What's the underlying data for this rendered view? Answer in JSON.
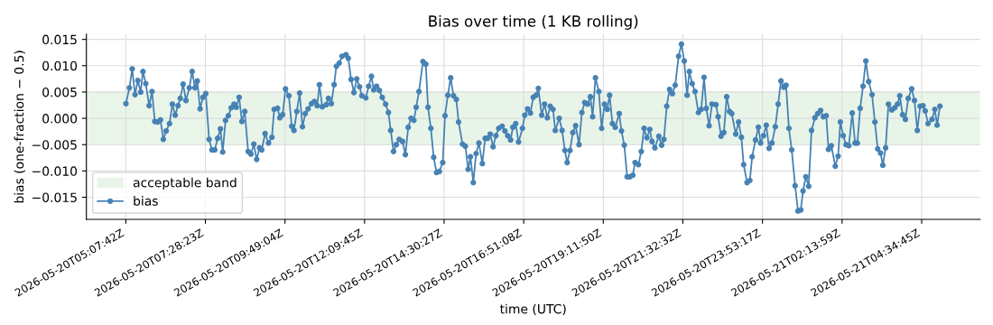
{
  "chart_data": {
    "type": "line",
    "title": "Bias over time (1 KB rolling)",
    "xlabel": "time (UTC)",
    "ylabel": "bias (one-fraction − 0.5)",
    "xlim": [
      "2026-05-20T03:58",
      "2026-05-21T06:18"
    ],
    "ylim": [
      -0.0192,
      0.016
    ],
    "xticks": [
      {
        "value": "2026-05-20T05:07:42",
        "label": "2026-05-20T05:07:42Z"
      },
      {
        "value": "2026-05-20T07:28:23",
        "label": "2026-05-20T07:28:23Z"
      },
      {
        "value": "2026-05-20T09:49:04",
        "label": "2026-05-20T09:49:04Z"
      },
      {
        "value": "2026-05-20T12:09:45",
        "label": "2026-05-20T12:09:45Z"
      },
      {
        "value": "2026-05-20T14:30:27",
        "label": "2026-05-20T14:30:27Z"
      },
      {
        "value": "2026-05-20T16:51:08",
        "label": "2026-05-20T16:51:08Z"
      },
      {
        "value": "2026-05-20T19:11:50",
        "label": "2026-05-20T19:11:50Z"
      },
      {
        "value": "2026-05-20T21:32:32",
        "label": "2026-05-20T21:32:32Z"
      },
      {
        "value": "2026-05-20T23:53:17",
        "label": "2026-05-20T23:53:17Z"
      },
      {
        "value": "2026-05-21T02:13:59",
        "label": "2026-05-21T02:13:59Z"
      },
      {
        "value": "2026-05-21T04:34:45",
        "label": "2026-05-21T04:34:45Z"
      }
    ],
    "yticks": [
      {
        "value": -0.015,
        "label": "−0.015"
      },
      {
        "value": -0.01,
        "label": "−0.010"
      },
      {
        "value": -0.005,
        "label": "−0.005"
      },
      {
        "value": 0,
        "label": "0.000"
      },
      {
        "value": 0.005,
        "label": "0.005"
      },
      {
        "value": 0.01,
        "label": "0.010"
      },
      {
        "value": 0.015,
        "label": "0.015"
      }
    ],
    "grid": true,
    "legend": "bottom left",
    "marker": "circle",
    "line_style": "solid",
    "bands": [
      {
        "axis": "y",
        "from": -0.005,
        "to": 0.005,
        "label": "acceptable band",
        "color": "#2ca02c"
      }
    ],
    "series": [
      {
        "name": "bias",
        "color": "#4682b4",
        "x": [
          "2026-05-20T05:08",
          "2026-05-20T05:14",
          "2026-05-20T05:19",
          "2026-05-20T05:24",
          "2026-05-20T05:29",
          "2026-05-20T05:34",
          "2026-05-20T05:38",
          "2026-05-20T05:43",
          "2026-05-20T05:49",
          "2026-05-20T05:54",
          "2026-05-20T05:59",
          "2026-05-20T06:04",
          "2026-05-20T06:09",
          "2026-05-20T06:14",
          "2026-05-20T06:19",
          "2026-05-20T06:25",
          "2026-05-20T06:30",
          "2026-05-20T06:35",
          "2026-05-20T06:40",
          "2026-05-20T06:44",
          "2026-05-20T06:49",
          "2026-05-20T06:54",
          "2026-05-20T07:00",
          "2026-05-20T07:05",
          "2026-05-20T07:10",
          "2026-05-20T07:14",
          "2026-05-20T07:19",
          "2026-05-20T07:24",
          "2026-05-20T07:29",
          "2026-05-20T07:35",
          "2026-05-20T07:40",
          "2026-05-20T07:45",
          "2026-05-20T07:50",
          "2026-05-20T07:55",
          "2026-05-20T07:59",
          "2026-05-20T08:04",
          "2026-05-20T08:09",
          "2026-05-20T08:14",
          "2026-05-20T08:19",
          "2026-05-20T08:23",
          "2026-05-20T08:28",
          "2026-05-20T08:33",
          "2026-05-20T08:38",
          "2026-05-20T08:44",
          "2026-05-20T08:49",
          "2026-05-20T08:54",
          "2026-05-20T08:59",
          "2026-05-20T09:04",
          "2026-05-20T09:08",
          "2026-05-20T09:14",
          "2026-05-20T09:20",
          "2026-05-20T09:26",
          "2026-05-20T09:30",
          "2026-05-20T09:36",
          "2026-05-20T09:40",
          "2026-05-20T09:45",
          "2026-05-20T09:50",
          "2026-05-20T09:56",
          "2026-05-20T10:01",
          "2026-05-20T10:05",
          "2026-05-20T10:10",
          "2026-05-20T10:15",
          "2026-05-20T10:20",
          "2026-05-20T10:25",
          "2026-05-20T10:30",
          "2026-05-20T10:36",
          "2026-05-20T10:41",
          "2026-05-20T10:46",
          "2026-05-20T10:50",
          "2026-05-20T10:55",
          "2026-05-20T11:02",
          "2026-05-20T11:06",
          "2026-05-20T11:11",
          "2026-05-20T11:16",
          "2026-05-20T11:20",
          "2026-05-20T11:25",
          "2026-05-20T11:30",
          "2026-05-20T11:37",
          "2026-05-20T11:41",
          "2026-05-20T11:46",
          "2026-05-20T11:51",
          "2026-05-20T11:56",
          "2026-05-20T12:01",
          "2026-05-20T12:05",
          "2026-05-20T12:12",
          "2026-05-20T12:17",
          "2026-05-20T12:22",
          "2026-05-20T12:26",
          "2026-05-20T12:31",
          "2026-05-20T12:36",
          "2026-05-20T12:41",
          "2026-05-20T12:47",
          "2026-05-20T12:52",
          "2026-05-20T12:56",
          "2026-05-20T13:01",
          "2026-05-20T13:06",
          "2026-05-20T13:11",
          "2026-05-20T13:17",
          "2026-05-20T13:22",
          "2026-05-20T13:27",
          "2026-05-20T13:32",
          "2026-05-20T13:37",
          "2026-05-20T13:41",
          "2026-05-20T13:46",
          "2026-05-20T13:53",
          "2026-05-20T13:58",
          "2026-05-20T14:02",
          "2026-05-20T14:07",
          "2026-05-20T14:12",
          "2026-05-20T14:17",
          "2026-05-20T14:22",
          "2026-05-20T14:28",
          "2026-05-20T14:32",
          "2026-05-20T14:37",
          "2026-05-20T14:42",
          "2026-05-20T14:47",
          "2026-05-20T14:52",
          "2026-05-20T14:56",
          "2026-05-20T15:03",
          "2026-05-20T15:08",
          "2026-05-20T15:13",
          "2026-05-20T15:17",
          "2026-05-20T15:22",
          "2026-05-20T15:27",
          "2026-05-20T15:32",
          "2026-05-20T15:38",
          "2026-05-20T15:43",
          "2026-05-20T15:47",
          "2026-05-20T15:52",
          "2026-05-20T15:57",
          "2026-05-20T16:02",
          "2026-05-20T16:07",
          "2026-05-20T16:13",
          "2026-05-20T16:18",
          "2026-05-20T16:23",
          "2026-05-20T16:28",
          "2026-05-20T16:32",
          "2026-05-20T16:37",
          "2026-05-20T16:42",
          "2026-05-20T16:49",
          "2026-05-20T16:53",
          "2026-05-20T16:58",
          "2026-05-20T17:03",
          "2026-05-20T17:08",
          "2026-05-20T17:13",
          "2026-05-20T17:17",
          "2026-05-20T17:23",
          "2026-05-20T17:28",
          "2026-05-20T17:33",
          "2026-05-20T17:38",
          "2026-05-20T17:43",
          "2026-05-20T17:47",
          "2026-05-20T17:54",
          "2026-05-20T17:59",
          "2026-05-20T18:04",
          "2026-05-20T18:08",
          "2026-05-20T18:13",
          "2026-05-20T18:18",
          "2026-05-20T18:23",
          "2026-05-20T18:29",
          "2026-05-20T18:34",
          "2026-05-20T18:39",
          "2026-05-20T18:44",
          "2026-05-20T18:49",
          "2026-05-20T18:53",
          "2026-05-20T18:58",
          "2026-05-20T19:04",
          "2026-05-20T19:09",
          "2026-05-20T19:14",
          "2026-05-20T19:19",
          "2026-05-20T19:23",
          "2026-05-20T19:28",
          "2026-05-20T19:33",
          "2026-05-20T19:40",
          "2026-05-20T19:44",
          "2026-05-20T19:49",
          "2026-05-20T19:54",
          "2026-05-20T19:59",
          "2026-05-20T20:04",
          "2026-05-20T20:08",
          "2026-05-20T20:14",
          "2026-05-20T20:19",
          "2026-05-20T20:24",
          "2026-05-20T20:29",
          "2026-05-20T20:34",
          "2026-05-20T20:38",
          "2026-05-20T20:43",
          "2026-05-20T20:50",
          "2026-05-20T20:55",
          "2026-05-20T20:59",
          "2026-05-20T21:04",
          "2026-05-20T21:09",
          "2026-05-20T21:14",
          "2026-05-20T21:19",
          "2026-05-20T21:25",
          "2026-05-20T21:30",
          "2026-05-20T21:35",
          "2026-05-20T21:40",
          "2026-05-20T21:44",
          "2026-05-20T21:49",
          "2026-05-20T21:54",
          "2026-05-20T22:00",
          "2026-05-20T22:05",
          "2026-05-20T22:10",
          "2026-05-20T22:14",
          "2026-05-20T22:19",
          "2026-05-20T22:24",
          "2026-05-20T22:31",
          "2026-05-20T22:35",
          "2026-05-20T22:40",
          "2026-05-20T22:45",
          "2026-05-20T22:50",
          "2026-05-20T22:55",
          "2026-05-20T22:59",
          "2026-05-20T23:06",
          "2026-05-20T23:11",
          "2026-05-20T23:16",
          "2026-05-20T23:20",
          "2026-05-20T23:26",
          "2026-05-20T23:31",
          "2026-05-20T23:35",
          "2026-05-20T23:41",
          "2026-05-20T23:46",
          "2026-05-20T23:50",
          "2026-05-20T23:55",
          "2026-05-21T00:00",
          "2026-05-21T00:05",
          "2026-05-21T00:10",
          "2026-05-21T00:16",
          "2026-05-21T00:21",
          "2026-05-21T00:26",
          "2026-05-21T00:31",
          "2026-05-21T00:35",
          "2026-05-21T00:40",
          "2026-05-21T00:45",
          "2026-05-21T00:51",
          "2026-05-21T00:56",
          "2026-05-21T01:01",
          "2026-05-21T01:05",
          "2026-05-21T01:10",
          "2026-05-21T01:15",
          "2026-05-21T01:20",
          "2026-05-21T01:26",
          "2026-05-21T01:31",
          "2026-05-21T01:36",
          "2026-05-21T01:41",
          "2026-05-21T01:46",
          "2026-05-21T01:50",
          "2026-05-21T01:55",
          "2026-05-21T02:02",
          "2026-05-21T02:07",
          "2026-05-21T02:11",
          "2026-05-21T02:16",
          "2026-05-21T02:21",
          "2026-05-21T02:26",
          "2026-05-21T02:32",
          "2026-05-21T02:37",
          "2026-05-21T02:41",
          "2026-05-21T02:46",
          "2026-05-21T02:51",
          "2026-05-21T02:56",
          "2026-05-21T03:01",
          "2026-05-21T03:07",
          "2026-05-21T03:12",
          "2026-05-21T03:17",
          "2026-05-21T03:22",
          "2026-05-21T03:26",
          "2026-05-21T03:31",
          "2026-05-21T03:36",
          "2026-05-21T03:42",
          "2026-05-21T03:47",
          "2026-05-21T03:52",
          "2026-05-21T03:56",
          "2026-05-21T04:01",
          "2026-05-21T04:06",
          "2026-05-21T04:11",
          "2026-05-21T04:17",
          "2026-05-21T04:22",
          "2026-05-21T04:27",
          "2026-05-21T04:32",
          "2026-05-21T04:37",
          "2026-05-21T04:41",
          "2026-05-21T04:46",
          "2026-05-21T04:53",
          "2026-05-21T04:58",
          "2026-05-21T05:02",
          "2026-05-21T05:07"
        ],
        "values": [
          0.0028,
          0.0058,
          0.0094,
          0.0045,
          0.0072,
          0.005,
          0.0089,
          0.0066,
          0.0024,
          0.0051,
          -0.0006,
          -0.0007,
          -0.0003,
          -0.004,
          -0.0024,
          -0.001,
          0.0027,
          0.0006,
          0.0024,
          0.0038,
          0.0065,
          0.0034,
          0.0058,
          0.0089,
          0.0058,
          0.0071,
          0.0018,
          0.004,
          0.0047,
          -0.004,
          -0.006,
          -0.006,
          -0.0038,
          -0.002,
          -0.0064,
          -0.0004,
          0.0005,
          0.002,
          0.0027,
          0.0021,
          0.004,
          -0.0006,
          0.0013,
          -0.0063,
          -0.0068,
          -0.0049,
          -0.0078,
          -0.0056,
          -0.006,
          -0.0029,
          -0.0047,
          -0.0036,
          0.0017,
          0.0019,
          0.0001,
          0.0007,
          0.0056,
          0.0043,
          -0.0015,
          -0.0023,
          0.0013,
          0.0048,
          -0.0016,
          0.0009,
          0.0018,
          0.0028,
          0.0032,
          0.0024,
          0.0064,
          0.0022,
          0.0026,
          0.0038,
          0.0028,
          0.0064,
          0.0099,
          0.0105,
          0.0118,
          0.0121,
          0.0114,
          0.0074,
          0.0049,
          0.0075,
          0.006,
          0.0043,
          0.0039,
          0.0061,
          0.008,
          0.0054,
          0.0061,
          0.0053,
          0.004,
          0.0027,
          0.0011,
          -0.0023,
          -0.0063,
          -0.005,
          -0.004,
          -0.0044,
          -0.0069,
          -0.0017,
          0.0,
          -0.0004,
          0.0021,
          0.0051,
          0.0108,
          0.0103,
          0.0021,
          -0.0019,
          -0.0074,
          -0.0103,
          -0.0101,
          -0.0084,
          0.0005,
          0.0044,
          0.0077,
          0.0043,
          0.0036,
          -0.0007,
          -0.0049,
          -0.0053,
          -0.0097,
          -0.0073,
          -0.0122,
          -0.0067,
          -0.0047,
          -0.0086,
          -0.0038,
          -0.0038,
          -0.003,
          -0.0054,
          -0.0033,
          -0.0019,
          -0.0015,
          -0.0024,
          -0.0033,
          -0.0041,
          -0.0017,
          -0.001,
          -0.0045,
          -0.0019,
          0.0006,
          0.0018,
          0.001,
          0.004,
          0.0044,
          0.0057,
          0.0006,
          0.0027,
          0.0001,
          0.0023,
          0.0017,
          -0.0023,
          0.0,
          -0.0023,
          -0.0061,
          -0.0084,
          -0.0061,
          -0.0027,
          -0.0014,
          -0.005,
          0.0011,
          0.003,
          0.0027,
          0.0041,
          0.0003,
          0.0077,
          0.0051,
          -0.0019,
          0.0027,
          0.0017,
          0.0044,
          -0.001,
          -0.0017,
          0.0009,
          -0.0024,
          -0.0051,
          -0.0111,
          -0.0111,
          -0.0108,
          -0.0084,
          -0.0088,
          -0.0063,
          -0.0019,
          -0.0037,
          -0.0021,
          -0.0044,
          -0.0056,
          -0.0034,
          -0.0051,
          -0.004,
          0.0023,
          0.0055,
          0.0047,
          0.0063,
          0.0118,
          0.0141,
          0.0109,
          0.0044,
          0.0089,
          0.0066,
          0.0051,
          0.0011,
          0.0017,
          0.0078,
          0.0019,
          -0.0014,
          0.0027,
          0.0026,
          0.0003,
          -0.0034,
          -0.0027,
          0.0041,
          0.0013,
          0.0009,
          -0.003,
          -0.0007,
          -0.0036,
          -0.0088,
          -0.0122,
          -0.0118,
          -0.0073,
          -0.0041,
          -0.0017,
          -0.0047,
          -0.0033,
          -0.0013,
          -0.0057,
          -0.0047,
          -0.0016,
          0.0027,
          0.0071,
          0.0059,
          0.0063,
          -0.0019,
          -0.006,
          -0.0128,
          -0.0176,
          -0.0174,
          -0.0138,
          -0.0111,
          -0.0129,
          -0.0023,
          0.0001,
          0.0009,
          0.0015,
          0.0003,
          0.0005,
          -0.0059,
          -0.0052,
          -0.0091,
          -0.0072,
          -0.0007,
          -0.0033,
          -0.005,
          -0.0052,
          0.001,
          -0.0047,
          -0.0047,
          0.0019,
          0.0061,
          0.0109,
          0.007,
          0.0045,
          -0.0007,
          -0.0058,
          -0.0066,
          -0.0089,
          -0.0056,
          0.0027,
          0.0016,
          0.002,
          0.0027,
          0.0043,
          0.0007,
          -0.0002,
          0.0038,
          0.0056,
          0.0034,
          -0.0023,
          0.0023,
          0.0024,
          0.0014,
          -0.001,
          -0.0002,
          0.0017,
          -0.0013,
          0.0023
        ]
      }
    ]
  }
}
